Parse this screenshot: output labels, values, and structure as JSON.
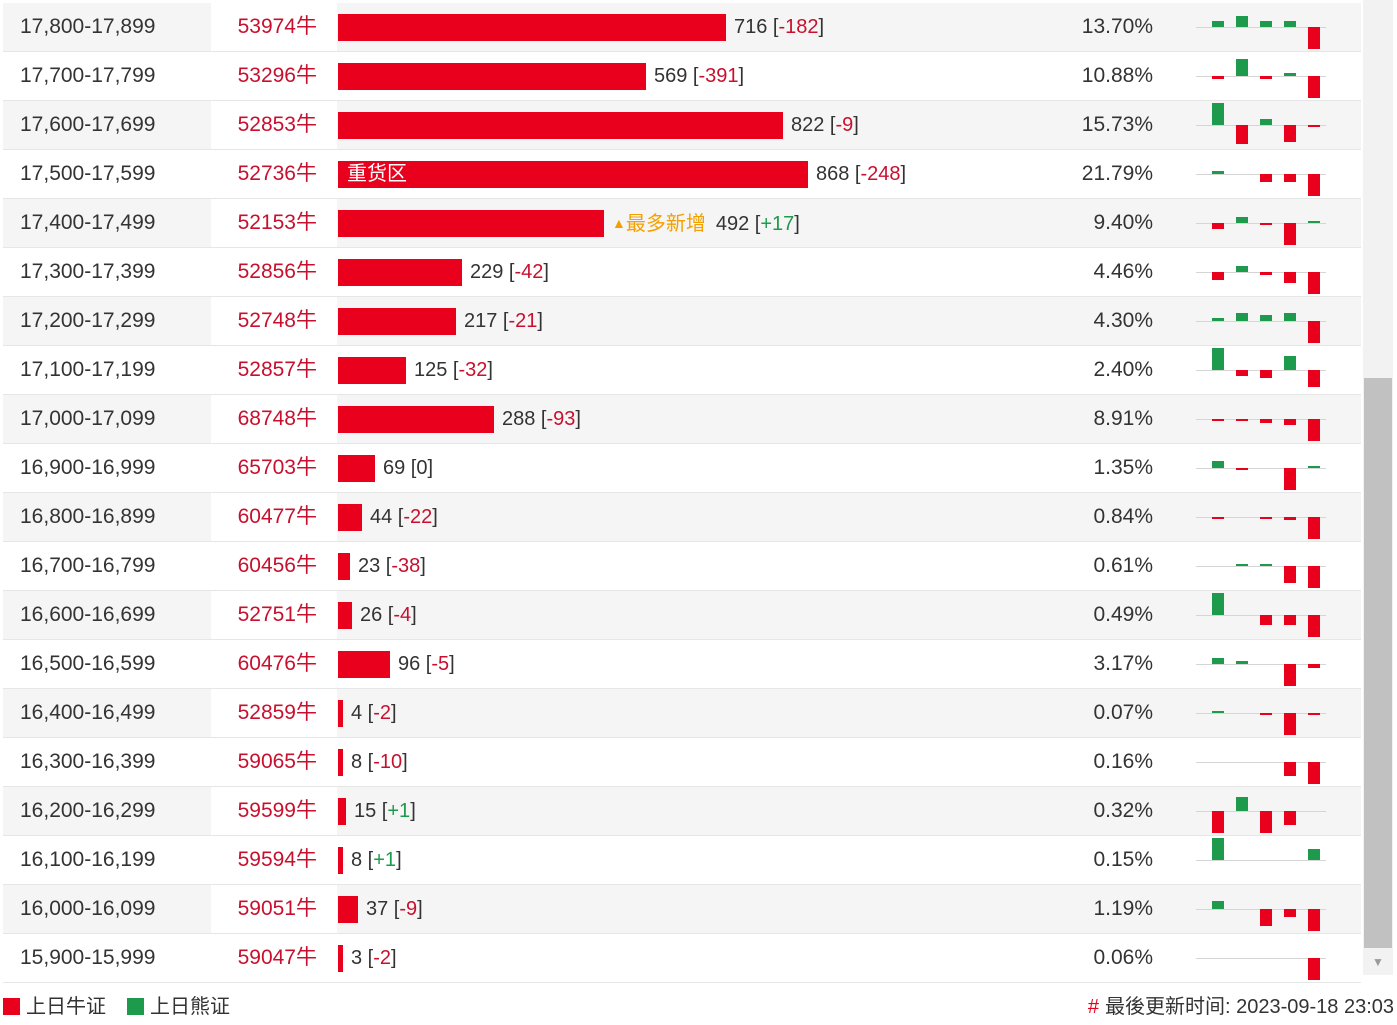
{
  "table": {
    "max_count": 868,
    "rows": [
      {
        "range": "17,800-17,899",
        "code": "53974牛",
        "count": "716",
        "change": "-182",
        "pct": "13.70%",
        "spark": [
          1,
          2,
          1,
          1,
          -4
        ]
      },
      {
        "range": "17,700-17,799",
        "code": "53296牛",
        "count": "569",
        "change": "-391",
        "pct": "10.88%",
        "spark": [
          -0.5,
          3,
          -0.5,
          0.5,
          -4
        ]
      },
      {
        "range": "17,600-17,699",
        "code": "52853牛",
        "count": "822",
        "change": "-9",
        "pct": "15.73%",
        "spark": [
          4,
          -3.5,
          1,
          -3,
          -0.4
        ]
      },
      {
        "range": "17,500-17,599",
        "code": "52736牛",
        "count": "868",
        "change": "-248",
        "pct": "21.79%",
        "label": "重货区",
        "spark": [
          0.5,
          0,
          -1.5,
          -1.5,
          -4
        ]
      },
      {
        "range": "17,400-17,499",
        "code": "52153牛",
        "count": "492",
        "change": "+17",
        "pct": "9.40%",
        "tag": "最多新增",
        "tag_icon": "▲",
        "spark": [
          -1,
          1,
          -0.4,
          -4,
          0.4
        ]
      },
      {
        "range": "17,300-17,399",
        "code": "52856牛",
        "count": "229",
        "change": "-42",
        "pct": "4.46%",
        "spark": [
          -1.5,
          1,
          -0.5,
          -2,
          -4
        ]
      },
      {
        "range": "17,200-17,299",
        "code": "52748牛",
        "count": "217",
        "change": "-21",
        "pct": "4.30%",
        "spark": [
          0.5,
          1.5,
          1,
          1.5,
          -4
        ]
      },
      {
        "range": "17,100-17,199",
        "code": "52857牛",
        "count": "125",
        "change": "-32",
        "pct": "2.40%",
        "spark": [
          4,
          -1,
          -1.5,
          2.5,
          -3
        ]
      },
      {
        "range": "17,000-17,099",
        "code": "68748牛",
        "count": "288",
        "change": "-93",
        "pct": "8.91%",
        "spark": [
          -0.4,
          -0.4,
          -0.8,
          -1,
          -4
        ]
      },
      {
        "range": "16,900-16,999",
        "code": "65703牛",
        "count": "69",
        "change": "0",
        "pct": "1.35%",
        "spark": [
          1.2,
          -0.2,
          0,
          -4,
          0.2
        ]
      },
      {
        "range": "16,800-16,899",
        "code": "60477牛",
        "count": "44",
        "change": "-22",
        "pct": "0.84%",
        "spark": [
          -0.4,
          0,
          -0.4,
          -0.6,
          -4
        ]
      },
      {
        "range": "16,700-16,799",
        "code": "60456牛",
        "count": "23",
        "change": "-38",
        "pct": "0.61%",
        "spark": [
          0,
          0.2,
          0.4,
          -3,
          -4
        ]
      },
      {
        "range": "16,600-16,699",
        "code": "52751牛",
        "count": "26",
        "change": "-4",
        "pct": "0.49%",
        "spark": [
          4,
          0,
          -1.8,
          -1.8,
          -4
        ]
      },
      {
        "range": "16,500-16,599",
        "code": "60476牛",
        "count": "96",
        "change": "-5",
        "pct": "3.17%",
        "spark": [
          1,
          0.6,
          0,
          -4,
          -0.8
        ]
      },
      {
        "range": "16,400-16,499",
        "code": "52859牛",
        "count": "4",
        "change": "-2",
        "pct": "0.07%",
        "spark": [
          0.2,
          0,
          -0.2,
          -4,
          -0.2
        ]
      },
      {
        "range": "16,300-16,399",
        "code": "59065牛",
        "count": "8",
        "change": "-10",
        "pct": "0.16%",
        "spark": [
          0,
          0,
          0,
          -2.5,
          -4
        ]
      },
      {
        "range": "16,200-16,299",
        "code": "59599牛",
        "count": "15",
        "change": "+1",
        "pct": "0.32%",
        "spark": [
          -4,
          2.5,
          -4,
          -2.5,
          0
        ]
      },
      {
        "range": "16,100-16,199",
        "code": "59594牛",
        "count": "8",
        "change": "+1",
        "pct": "0.15%",
        "spark": [
          4,
          0,
          0,
          0,
          2
        ]
      },
      {
        "range": "16,000-16,099",
        "code": "59051牛",
        "count": "37",
        "change": "-9",
        "pct": "1.19%",
        "spark": [
          1.5,
          0,
          -3,
          -1.5,
          -4
        ]
      },
      {
        "range": "15,900-15,999",
        "code": "59047牛",
        "count": "3",
        "change": "-2",
        "pct": "0.06%",
        "spark": [
          0,
          0,
          0,
          0,
          -4
        ]
      }
    ]
  },
  "legend": {
    "bull_label": "上日牛证",
    "bear_label": "上日熊证",
    "bull_color": "#e8001c",
    "bear_color": "#1e9a4c"
  },
  "footer": {
    "hash_icon": "#",
    "updated_label": "最後更新时间: 2023-09-18 23:03"
  },
  "scrollbar": {
    "down_arrow_icon": "▼"
  }
}
